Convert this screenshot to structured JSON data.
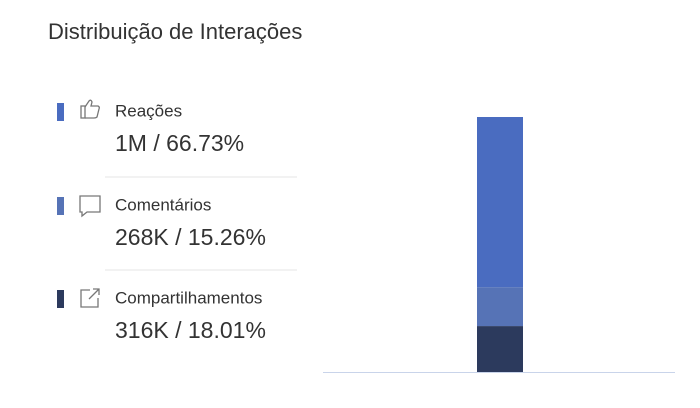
{
  "chart_data": {
    "type": "bar",
    "stacked": true,
    "title": "Distribuição de Interações",
    "categories": [
      null
    ],
    "ylim": [
      0,
      100
    ],
    "series": [
      {
        "name": "Reações",
        "color": "#4a6cc0",
        "values": [
          66.73
        ],
        "value_labels": [
          "1M / 66.73%"
        ]
      },
      {
        "name": "Comentários",
        "color": "#5673b6",
        "values": [
          15.26
        ],
        "value_labels": [
          "268K / 15.26%"
        ]
      },
      {
        "name": "Compartilhamentos",
        "color": "#2c3a5d",
        "values": [
          18.01
        ],
        "value_labels": [
          "316K / 18.01%"
        ]
      }
    ]
  }
}
